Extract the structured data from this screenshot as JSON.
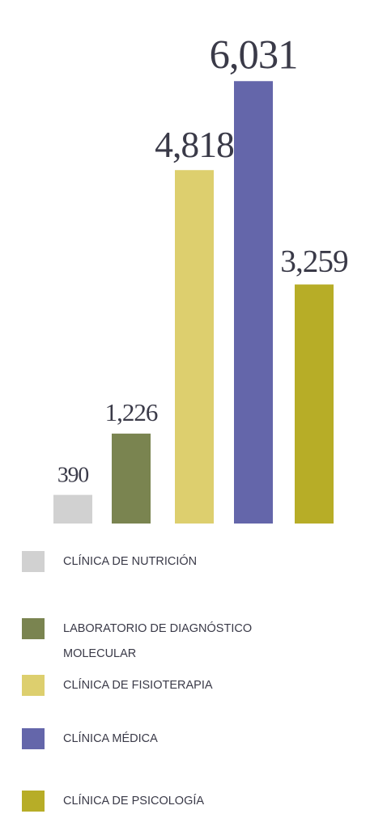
{
  "chart_data": {
    "type": "bar",
    "categories": [
      "CLÍNICA DE NUTRICIÓN",
      "LABORATORIO DE DIAGNÓSTICO MOLECULAR",
      "CLÍNICA DE FISIOTERAPIA",
      "CLÍNICA MÉDICA",
      "CLÍNICA DE PSICOLOGÍA"
    ],
    "values": [
      390,
      1226,
      4818,
      6031,
      3259
    ],
    "value_labels": [
      "390",
      "1,226",
      "4,818",
      "6,031",
      "3,259"
    ],
    "colors": [
      "#d1d1d1",
      "#7a8450",
      "#ddcf6e",
      "#6466aa",
      "#b7ad27"
    ],
    "ylim": [
      0,
      6100
    ]
  }
}
